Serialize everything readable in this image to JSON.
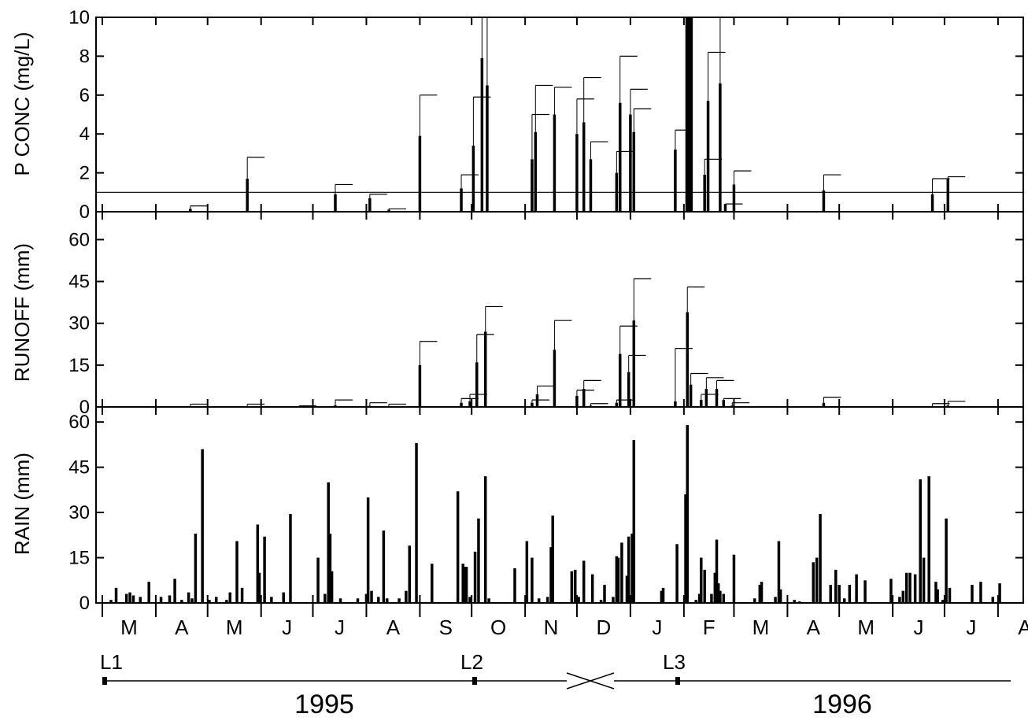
{
  "chart_data": [
    {
      "type": "bar",
      "panel": "p",
      "ylabel": "P CONC (mg/L)",
      "ylim": [
        0,
        10
      ],
      "yticks": [
        "0",
        "2",
        "4",
        "6",
        "8",
        "10"
      ],
      "reference_line": 1.0,
      "x_unit": "day (0 = 1 Mar 1995)",
      "bars": [
        {
          "x": 51,
          "v": 0.15,
          "e": 0.3
        },
        {
          "x": 84,
          "v": 1.7,
          "e": 2.8
        },
        {
          "x": 135,
          "v": 0.9,
          "e": 1.4
        },
        {
          "x": 155,
          "v": 0.7,
          "e": 0.9
        },
        {
          "x": 166,
          "v": 0.1,
          "e": 0.15
        },
        {
          "x": 184,
          "v": 3.9,
          "e": 6.0
        },
        {
          "x": 208,
          "v": 1.2,
          "e": 1.9
        },
        {
          "x": 215,
          "v": 3.4,
          "e": 5.9
        },
        {
          "x": 220,
          "v": 7.9,
          "e": 10
        },
        {
          "x": 223,
          "v": 6.5,
          "e": 10
        },
        {
          "x": 249,
          "v": 2.7,
          "e": 5.0
        },
        {
          "x": 251,
          "v": 4.1,
          "e": 6.5
        },
        {
          "x": 262,
          "v": 5.0,
          "e": 6.4
        },
        {
          "x": 275,
          "v": 4.0,
          "e": 5.8
        },
        {
          "x": 279,
          "v": 4.6,
          "e": 6.9
        },
        {
          "x": 283,
          "v": 2.7,
          "e": 3.6
        },
        {
          "x": 298,
          "v": 2.0,
          "e": 3.1
        },
        {
          "x": 300,
          "v": 5.6,
          "e": 8.0
        },
        {
          "x": 306,
          "v": 5.0,
          "e": 6.3
        },
        {
          "x": 308,
          "v": 4.1,
          "e": 5.3
        },
        {
          "x": 332,
          "v": 3.2,
          "e": 4.2
        },
        {
          "x": 339,
          "v": 10,
          "e": 10
        },
        {
          "x": 341,
          "v": 10,
          "e": 10
        },
        {
          "x": 349,
          "v": 1.9,
          "e": 2.7
        },
        {
          "x": 351,
          "v": 5.7,
          "e": 8.2
        },
        {
          "x": 358,
          "v": 6.6,
          "e": 10
        },
        {
          "x": 361,
          "v": 0.4,
          "e": 0.4
        },
        {
          "x": 366,
          "v": 1.4,
          "e": 2.1
        },
        {
          "x": 418,
          "v": 1.1,
          "e": 1.9
        },
        {
          "x": 481,
          "v": 0.9,
          "e": 1.7
        },
        {
          "x": 490,
          "v": 1.7,
          "e": 1.8
        }
      ]
    },
    {
      "type": "bar",
      "panel": "r",
      "ylabel": "RUNOFF (mm)",
      "ylim": [
        0,
        70
      ],
      "yticks": [
        "0",
        "15",
        "30",
        "45",
        "60"
      ],
      "x_unit": "day (0 = 1 Mar 1995)",
      "bars": [
        {
          "x": 51,
          "v": 0.3,
          "e": 1.0
        },
        {
          "x": 84,
          "v": 0.2,
          "e": 1.0
        },
        {
          "x": 114,
          "v": 0.2,
          "e": 0.4
        },
        {
          "x": 135,
          "v": 0.6,
          "e": 2.5
        },
        {
          "x": 155,
          "v": 0.4,
          "e": 1.5
        },
        {
          "x": 166,
          "v": 0.2,
          "e": 1.0
        },
        {
          "x": 184,
          "v": 15,
          "e": 23.5
        },
        {
          "x": 208,
          "v": 1.5,
          "e": 3.0
        },
        {
          "x": 213,
          "v": 2.0,
          "e": 4.5
        },
        {
          "x": 217,
          "v": 16,
          "e": 26
        },
        {
          "x": 222,
          "v": 27,
          "e": 36
        },
        {
          "x": 249,
          "v": 1.5,
          "e": 2.5
        },
        {
          "x": 252,
          "v": 4.5,
          "e": 7.5
        },
        {
          "x": 262,
          "v": 20.5,
          "e": 31
        },
        {
          "x": 275,
          "v": 4.0,
          "e": 6.0
        },
        {
          "x": 279,
          "v": 6.5,
          "e": 9.5
        },
        {
          "x": 283,
          "v": 0.5,
          "e": 1.2
        },
        {
          "x": 298,
          "v": 1.5,
          "e": 2.5
        },
        {
          "x": 300,
          "v": 19,
          "e": 29
        },
        {
          "x": 305,
          "v": 12.5,
          "e": 18.5
        },
        {
          "x": 308,
          "v": 31,
          "e": 46
        },
        {
          "x": 332,
          "v": 2.0,
          "e": 21
        },
        {
          "x": 339,
          "v": 34,
          "e": 43
        },
        {
          "x": 341,
          "v": 8.0,
          "e": 12
        },
        {
          "x": 347,
          "v": 2.5,
          "e": 4.5
        },
        {
          "x": 350,
          "v": 6.5,
          "e": 10.5
        },
        {
          "x": 356,
          "v": 6.5,
          "e": 9.5
        },
        {
          "x": 360,
          "v": 2.5,
          "e": 3.0
        },
        {
          "x": 365,
          "v": 0.5,
          "e": 1.5
        },
        {
          "x": 418,
          "v": 1.5,
          "e": 3.5
        },
        {
          "x": 481,
          "v": 0.3,
          "e": 1.2
        },
        {
          "x": 490,
          "v": 0.5,
          "e": 2.0
        }
      ]
    },
    {
      "type": "bar",
      "panel": "rain",
      "ylabel": "RAIN (mm)",
      "ylim": [
        0,
        65
      ],
      "yticks": [
        "0",
        "15",
        "30",
        "45",
        "60"
      ],
      "x_unit": "day (0 = 1 Mar 1995)",
      "bars": [
        {
          "x": 5,
          "v": 1
        },
        {
          "x": 8,
          "v": 5
        },
        {
          "x": 14,
          "v": 3
        },
        {
          "x": 16,
          "v": 3.5
        },
        {
          "x": 18,
          "v": 2.5
        },
        {
          "x": 22,
          "v": 2
        },
        {
          "x": 27,
          "v": 7
        },
        {
          "x": 34,
          "v": 2
        },
        {
          "x": 39,
          "v": 2.5
        },
        {
          "x": 42,
          "v": 8
        },
        {
          "x": 46,
          "v": 1
        },
        {
          "x": 50,
          "v": 3.5
        },
        {
          "x": 52,
          "v": 1.5
        },
        {
          "x": 54,
          "v": 23
        },
        {
          "x": 58,
          "v": 51
        },
        {
          "x": 62,
          "v": 1
        },
        {
          "x": 66,
          "v": 2
        },
        {
          "x": 72,
          "v": 1
        },
        {
          "x": 74,
          "v": 3.5
        },
        {
          "x": 78,
          "v": 20.5
        },
        {
          "x": 81,
          "v": 5
        },
        {
          "x": 90,
          "v": 26
        },
        {
          "x": 91,
          "v": 10
        },
        {
          "x": 94,
          "v": 22
        },
        {
          "x": 98,
          "v": 2
        },
        {
          "x": 105,
          "v": 3.5
        },
        {
          "x": 109,
          "v": 29.5
        },
        {
          "x": 125,
          "v": 15
        },
        {
          "x": 129,
          "v": 3
        },
        {
          "x": 131,
          "v": 40
        },
        {
          "x": 132,
          "v": 23
        },
        {
          "x": 133,
          "v": 10.5
        },
        {
          "x": 138,
          "v": 1.5
        },
        {
          "x": 148,
          "v": 1.5
        },
        {
          "x": 153,
          "v": 3
        },
        {
          "x": 154,
          "v": 35
        },
        {
          "x": 156,
          "v": 4
        },
        {
          "x": 160,
          "v": 2
        },
        {
          "x": 163,
          "v": 24
        },
        {
          "x": 165,
          "v": 1.5
        },
        {
          "x": 172,
          "v": 1.5
        },
        {
          "x": 176,
          "v": 4
        },
        {
          "x": 178,
          "v": 19
        },
        {
          "x": 182,
          "v": 53
        },
        {
          "x": 191,
          "v": 13
        },
        {
          "x": 206,
          "v": 37
        },
        {
          "x": 209,
          "v": 13
        },
        {
          "x": 210,
          "v": 12
        },
        {
          "x": 211,
          "v": 12
        },
        {
          "x": 213,
          "v": 2
        },
        {
          "x": 216,
          "v": 17
        },
        {
          "x": 218,
          "v": 28
        },
        {
          "x": 222,
          "v": 42
        },
        {
          "x": 224,
          "v": 1.5
        },
        {
          "x": 239,
          "v": 11.5
        },
        {
          "x": 246,
          "v": 20.5
        },
        {
          "x": 249,
          "v": 15
        },
        {
          "x": 253,
          "v": 1.5
        },
        {
          "x": 258,
          "v": 2
        },
        {
          "x": 260,
          "v": 18.5
        },
        {
          "x": 261,
          "v": 29
        },
        {
          "x": 272,
          "v": 10.5
        },
        {
          "x": 274,
          "v": 11
        },
        {
          "x": 276,
          "v": 2
        },
        {
          "x": 279,
          "v": 14
        },
        {
          "x": 284,
          "v": 9.5
        },
        {
          "x": 289,
          "v": 1
        },
        {
          "x": 291,
          "v": 6
        },
        {
          "x": 296,
          "v": 2
        },
        {
          "x": 298,
          "v": 15.5
        },
        {
          "x": 299,
          "v": 15
        },
        {
          "x": 301,
          "v": 20
        },
        {
          "x": 304,
          "v": 9
        },
        {
          "x": 305,
          "v": 22
        },
        {
          "x": 307,
          "v": 23
        },
        {
          "x": 308,
          "v": 54
        },
        {
          "x": 324,
          "v": 4
        },
        {
          "x": 325,
          "v": 5
        },
        {
          "x": 333,
          "v": 19.5
        },
        {
          "x": 338,
          "v": 36
        },
        {
          "x": 339,
          "v": 59
        },
        {
          "x": 344,
          "v": 1
        },
        {
          "x": 346,
          "v": 3
        },
        {
          "x": 347,
          "v": 15
        },
        {
          "x": 349,
          "v": 11
        },
        {
          "x": 353,
          "v": 3
        },
        {
          "x": 355,
          "v": 10
        },
        {
          "x": 356,
          "v": 21
        },
        {
          "x": 357,
          "v": 6.5
        },
        {
          "x": 358,
          "v": 4
        },
        {
          "x": 360,
          "v": 3
        },
        {
          "x": 366,
          "v": 16
        },
        {
          "x": 378,
          "v": 1.5
        },
        {
          "x": 381,
          "v": 6
        },
        {
          "x": 382,
          "v": 7
        },
        {
          "x": 390,
          "v": 2
        },
        {
          "x": 392,
          "v": 20.5
        },
        {
          "x": 393,
          "v": 4.5
        },
        {
          "x": 401,
          "v": 1
        },
        {
          "x": 404,
          "v": 0.5
        },
        {
          "x": 412,
          "v": 13.5
        },
        {
          "x": 414,
          "v": 15
        },
        {
          "x": 416,
          "v": 29.5
        },
        {
          "x": 422,
          "v": 6
        },
        {
          "x": 425,
          "v": 11
        },
        {
          "x": 427,
          "v": 6
        },
        {
          "x": 430,
          "v": 1.5
        },
        {
          "x": 433,
          "v": 6
        },
        {
          "x": 437,
          "v": 9.5
        },
        {
          "x": 442,
          "v": 7.5
        },
        {
          "x": 457,
          "v": 8
        },
        {
          "x": 462,
          "v": 2
        },
        {
          "x": 464,
          "v": 4
        },
        {
          "x": 466,
          "v": 10
        },
        {
          "x": 468,
          "v": 10
        },
        {
          "x": 471,
          "v": 9.5
        },
        {
          "x": 474,
          "v": 41
        },
        {
          "x": 476,
          "v": 15
        },
        {
          "x": 479,
          "v": 42
        },
        {
          "x": 483,
          "v": 7
        },
        {
          "x": 484,
          "v": 4.5
        },
        {
          "x": 487,
          "v": 1
        },
        {
          "x": 489,
          "v": 28
        },
        {
          "x": 491,
          "v": 5
        },
        {
          "x": 504,
          "v": 6
        },
        {
          "x": 509,
          "v": 7
        },
        {
          "x": 516,
          "v": 2
        },
        {
          "x": 520,
          "v": 6.5
        }
      ]
    }
  ],
  "x_axis": {
    "month_labels": [
      "M",
      "A",
      "M",
      "J",
      "J",
      "A",
      "S",
      "O",
      "N",
      "D",
      "J",
      "F",
      "M",
      "A",
      "M",
      "J",
      "J",
      "A"
    ],
    "years": [
      "1995",
      "1996"
    ],
    "markers": [
      "L1",
      "L2",
      "L3"
    ]
  }
}
